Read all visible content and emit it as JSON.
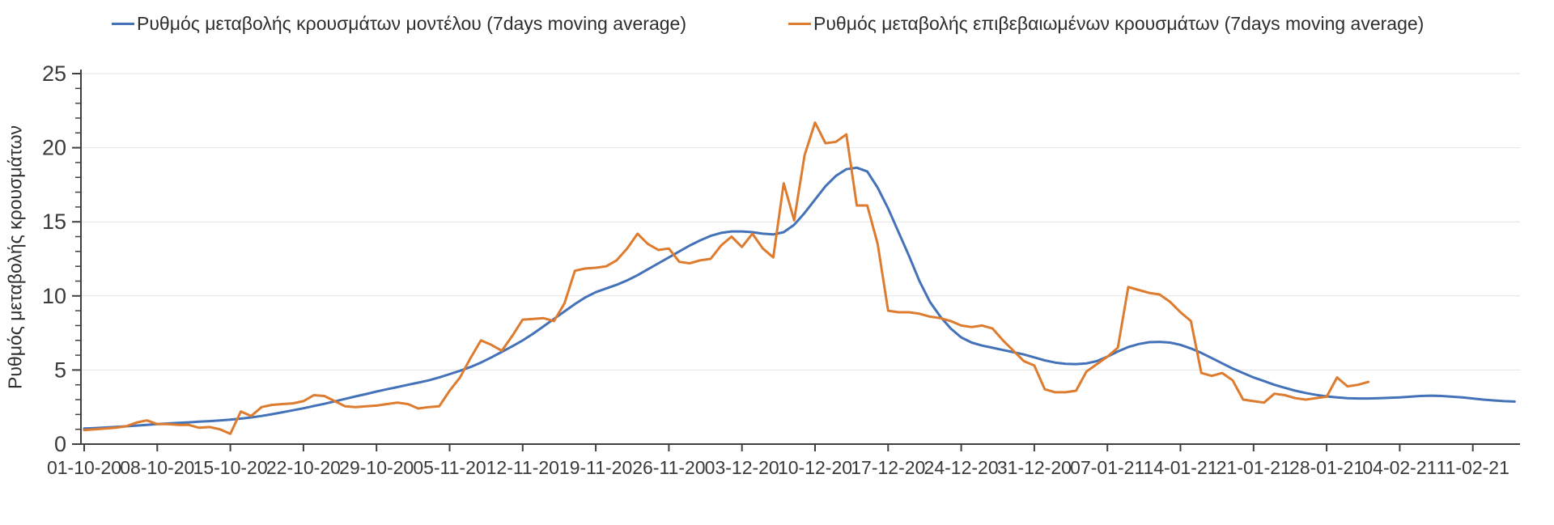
{
  "chart_data": {
    "type": "line",
    "title": "",
    "ylabel": "Ρυθμός μεταβολής κρουσμάτων",
    "xlabel": "",
    "ylim": [
      0,
      25
    ],
    "y_ticks": [
      0,
      5,
      10,
      15,
      20,
      25
    ],
    "y_minor_tick_step": 1,
    "grid": true,
    "grid_color": "#e2e2e2",
    "axis_color": "#3f3f3f",
    "text_color": "#3a3a3a",
    "legend_position": "top",
    "x_tick_labels": [
      "01-10-20",
      "08-10-20",
      "15-10-20",
      "22-10-20",
      "29-10-20",
      "05-11-20",
      "12-11-20",
      "19-11-20",
      "26-11-20",
      "03-12-20",
      "10-12-20",
      "17-12-20",
      "24-12-20",
      "31-12-20",
      "07-01-21",
      "14-01-21",
      "21-01-21",
      "28-01-21",
      "04-02-21",
      "11-02-21"
    ],
    "x_unit": "daily points, 7 days between labeled ticks",
    "series": [
      {
        "name": "Ρυθμός μεταβολής κρουσμάτων μοντέλου (7days moving average)",
        "color": "#4472b8",
        "start_date": "01-10-20",
        "end_date": "15-02-21",
        "values": [
          1.05,
          1.08,
          1.12,
          1.16,
          1.2,
          1.25,
          1.3,
          1.35,
          1.39,
          1.43,
          1.47,
          1.51,
          1.55,
          1.6,
          1.65,
          1.72,
          1.8,
          1.9,
          2.02,
          2.15,
          2.28,
          2.42,
          2.57,
          2.72,
          2.88,
          3.05,
          3.22,
          3.38,
          3.55,
          3.7,
          3.85,
          4.0,
          4.15,
          4.3,
          4.5,
          4.72,
          4.95,
          5.2,
          5.5,
          5.85,
          6.22,
          6.6,
          7.0,
          7.45,
          7.95,
          8.45,
          8.95,
          9.45,
          9.9,
          10.25,
          10.5,
          10.75,
          11.05,
          11.4,
          11.8,
          12.2,
          12.6,
          13.0,
          13.4,
          13.75,
          14.05,
          14.25,
          14.35,
          14.35,
          14.3,
          14.2,
          14.15,
          14.3,
          14.8,
          15.6,
          16.5,
          17.4,
          18.1,
          18.55,
          18.65,
          18.4,
          17.3,
          15.9,
          14.3,
          12.7,
          11.0,
          9.6,
          8.6,
          7.8,
          7.2,
          6.85,
          6.65,
          6.5,
          6.35,
          6.2,
          6.05,
          5.85,
          5.65,
          5.5,
          5.42,
          5.4,
          5.45,
          5.6,
          5.9,
          6.25,
          6.55,
          6.75,
          6.88,
          6.9,
          6.85,
          6.7,
          6.45,
          6.15,
          5.8,
          5.45,
          5.1,
          4.8,
          4.5,
          4.25,
          4.0,
          3.8,
          3.6,
          3.45,
          3.32,
          3.22,
          3.15,
          3.1,
          3.08,
          3.08,
          3.1,
          3.12,
          3.15,
          3.2,
          3.25,
          3.27,
          3.25,
          3.2,
          3.15,
          3.08,
          3.0,
          2.95,
          2.9,
          2.87
        ]
      },
      {
        "name": "Ρυθμός μεταβολής επιβεβαιωμένων κρουσμάτων (7days moving average)",
        "color": "#dd7b2f",
        "start_date": "01-10-20",
        "end_date": "01-02-21",
        "values": [
          0.95,
          1.0,
          1.05,
          1.1,
          1.2,
          1.45,
          1.6,
          1.35,
          1.35,
          1.3,
          1.3,
          1.1,
          1.15,
          1.0,
          0.7,
          2.2,
          1.9,
          2.5,
          2.65,
          2.7,
          2.75,
          2.9,
          3.3,
          3.25,
          2.9,
          2.55,
          2.5,
          2.55,
          2.6,
          2.7,
          2.8,
          2.7,
          2.4,
          2.5,
          2.55,
          3.6,
          4.5,
          5.8,
          7.0,
          6.7,
          6.3,
          7.3,
          8.4,
          8.45,
          8.5,
          8.3,
          9.5,
          11.7,
          11.85,
          11.9,
          12.0,
          12.4,
          13.2,
          14.2,
          13.5,
          13.1,
          13.2,
          12.3,
          12.2,
          12.4,
          12.5,
          13.4,
          14.0,
          13.3,
          14.2,
          13.2,
          12.6,
          17.6,
          15.1,
          19.5,
          21.7,
          20.3,
          20.4,
          20.9,
          16.1,
          16.1,
          13.5,
          9.0,
          8.9,
          8.9,
          8.8,
          8.6,
          8.5,
          8.3,
          8.0,
          7.9,
          8.0,
          7.8,
          7.0,
          6.3,
          5.6,
          5.3,
          3.7,
          3.5,
          3.5,
          3.6,
          4.9,
          5.4,
          5.9,
          6.5,
          10.6,
          10.4,
          10.2,
          10.1,
          9.6,
          8.9,
          8.3,
          4.8,
          4.6,
          4.8,
          4.3,
          3.0,
          2.9,
          2.8,
          3.4,
          3.3,
          3.1,
          3.0,
          3.1,
          3.2,
          4.5,
          3.9,
          4.0,
          4.2
        ]
      }
    ]
  }
}
